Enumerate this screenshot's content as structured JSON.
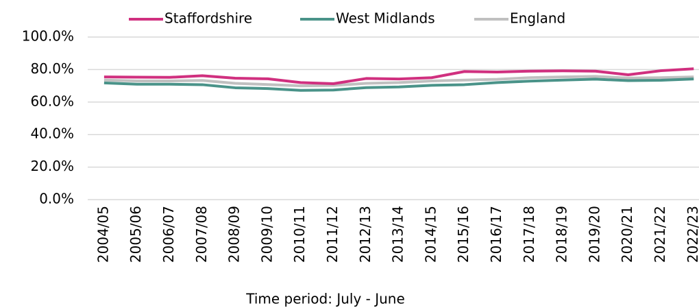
{
  "chart_data": {
    "type": "line",
    "x_label": "Time period: July - June",
    "categories": [
      "2004/05",
      "2005/06",
      "2006/07",
      "2007/08",
      "2008/09",
      "2009/10",
      "2010/11",
      "2011/12",
      "2012/13",
      "2013/14",
      "2014/15",
      "2015/16",
      "2016/17",
      "2017/18",
      "2018/19",
      "2019/20",
      "2020/21",
      "2021/22",
      "2022/23"
    ],
    "series": [
      {
        "name": "Staffordshire",
        "color": "#d0307f",
        "values": [
          75.5,
          75.3,
          75.2,
          76.2,
          74.7,
          74.3,
          72,
          71.3,
          74.5,
          74.2,
          75,
          78.8,
          78.5,
          79,
          79.2,
          79,
          76.8,
          79.3,
          80.5
        ]
      },
      {
        "name": "West Midlands",
        "color": "#4a9389",
        "values": [
          71.8,
          71,
          71,
          70.7,
          68.8,
          68.3,
          67.2,
          67.4,
          68.9,
          69.3,
          70.3,
          70.7,
          72,
          72.9,
          73.5,
          74.1,
          73.2,
          73.4,
          74.2
        ]
      },
      {
        "name": "England",
        "color": "#c0c0c0",
        "values": [
          73.5,
          73,
          73,
          73.3,
          71.5,
          70.8,
          70,
          70.2,
          71.5,
          72,
          73,
          73.5,
          74,
          75,
          75.5,
          75.8,
          74.8,
          75,
          75.5
        ]
      }
    ],
    "ylim": [
      0,
      100
    ],
    "yticks": [
      {
        "value": 0,
        "label": "0.0%"
      },
      {
        "value": 20,
        "label": "20.0%"
      },
      {
        "value": 40,
        "label": "40.0%"
      },
      {
        "value": 60,
        "label": "60.0%"
      },
      {
        "value": 80,
        "label": "80.0%"
      },
      {
        "value": 100,
        "label": "100.0%"
      }
    ],
    "grid": true,
    "legend": "top"
  }
}
